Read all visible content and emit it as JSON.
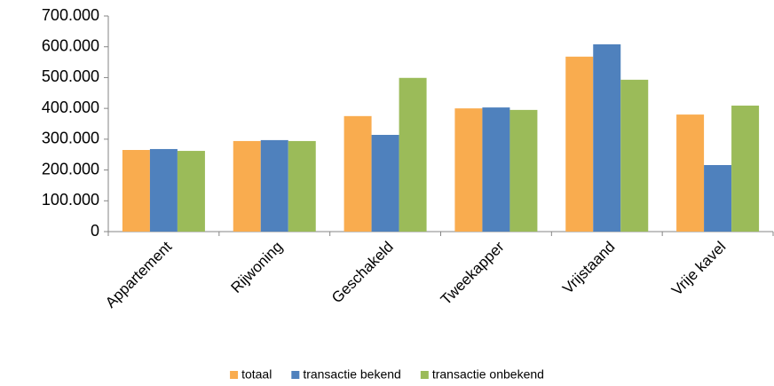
{
  "chart_data": {
    "type": "bar",
    "categories": [
      "Appartement",
      "Rijwoning",
      "Geschakeld",
      "Tweekapper",
      "Vrijstaand",
      "Vrije kavel"
    ],
    "series": [
      {
        "name": "totaal",
        "color": "#f9ac4f",
        "values": [
          265000,
          294000,
          375000,
          400000,
          568000,
          380000
        ]
      },
      {
        "name": "transactie bekend",
        "color": "#4f81bd",
        "values": [
          268000,
          297000,
          314000,
          403000,
          608000,
          216000
        ]
      },
      {
        "name": "transactie onbekend",
        "color": "#9bbb59",
        "values": [
          262000,
          294000,
          499000,
          395000,
          493000,
          409000
        ]
      }
    ],
    "ylim": [
      0,
      700000
    ],
    "yticks": [
      0,
      {
        "value": 100000,
        "label": "100.000"
      },
      {
        "value": 200000,
        "label": "200.000"
      },
      {
        "value": 300000,
        "label": "300.000"
      },
      {
        "value": 400000,
        "label": "400.000"
      },
      {
        "value": 500000,
        "label": "500.000"
      },
      {
        "value": 600000,
        "label": "600.000"
      },
      {
        "value": 700000,
        "label": "700.000"
      }
    ],
    "grid": false
  }
}
